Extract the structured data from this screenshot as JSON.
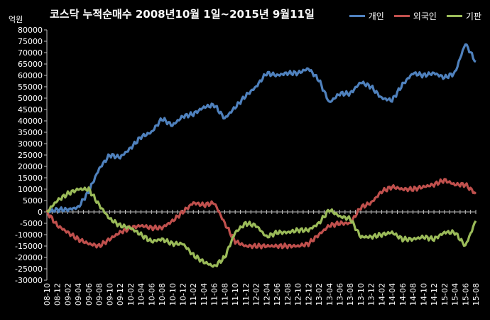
{
  "chart_data": {
    "type": "line",
    "title": "코스닥 누적순매수 2008년10월 1일~2015년 9월11일",
    "unit": "억원",
    "ylim": [
      -30000,
      80000
    ],
    "yticks": [
      80000,
      75000,
      70000,
      65000,
      60000,
      55000,
      50000,
      45000,
      40000,
      35000,
      30000,
      25000,
      20000,
      15000,
      10000,
      5000,
      0,
      -5000,
      -10000,
      -15000,
      -20000,
      -25000,
      -30000
    ],
    "categories": [
      "08-10",
      "08-12",
      "09-02",
      "09-04",
      "09-06",
      "09-08",
      "09-10",
      "09-12",
      "10-02",
      "10-04",
      "10-06",
      "10-08",
      "10-10",
      "10-12",
      "11-02",
      "11-04",
      "11-06",
      "11-08",
      "11-10",
      "11-12",
      "12-02",
      "12-04",
      "12-06",
      "12-08",
      "12-10",
      "12-12",
      "13-02",
      "13-04",
      "13-06",
      "13-08",
      "13-10",
      "13-12",
      "14-02",
      "14-04",
      "14-06",
      "14-08",
      "14-10",
      "14-12",
      "15-02",
      "15-04",
      "15-06",
      "15-08"
    ],
    "legend_position": "top-right",
    "grid": false,
    "series": [
      {
        "name": "개인",
        "color": "#4f81bd",
        "values": [
          0,
          1000,
          1000,
          2000,
          9000,
          19000,
          25000,
          24000,
          28000,
          33000,
          35000,
          41000,
          38000,
          42000,
          43000,
          46000,
          47000,
          41000,
          46000,
          51000,
          55000,
          61000,
          60000,
          61000,
          61000,
          63000,
          58000,
          48000,
          52000,
          52000,
          57000,
          55000,
          50000,
          49000,
          56000,
          61000,
          60000,
          61000,
          59000,
          61000,
          74000,
          66000
        ]
      },
      {
        "name": "외국인",
        "color": "#c0504d",
        "values": [
          0,
          -6000,
          -9000,
          -12000,
          -14000,
          -15000,
          -12000,
          -9000,
          -7000,
          -6000,
          -7000,
          -7000,
          -4000,
          0,
          4000,
          3000,
          4000,
          -5000,
          -13000,
          -15000,
          -15000,
          -15000,
          -15000,
          -15000,
          -15000,
          -14000,
          -10000,
          -6000,
          -5000,
          -5000,
          2000,
          4000,
          9000,
          11000,
          10000,
          10000,
          11000,
          12000,
          14000,
          12000,
          12000,
          8000
        ]
      },
      {
        "name": "기판",
        "color": "#9bbb59",
        "values": [
          0,
          5000,
          8000,
          10000,
          10000,
          3000,
          -3000,
          -6000,
          -7000,
          -10000,
          -13000,
          -12000,
          -14000,
          -14000,
          -19000,
          -22000,
          -24000,
          -20000,
          -9000,
          -5000,
          -6000,
          -11000,
          -9000,
          -9000,
          -8000,
          -8000,
          -5000,
          1000,
          -2000,
          -3000,
          -11000,
          -11000,
          -10000,
          -9000,
          -12000,
          -12000,
          -11000,
          -12000,
          -9000,
          -9000,
          -15000,
          -4000
        ]
      }
    ]
  }
}
